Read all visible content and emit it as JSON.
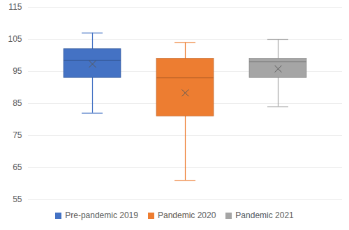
{
  "chart_data": {
    "type": "box",
    "series": [
      {
        "name": "Pre-pandemic 2019",
        "color": "#4472c4",
        "min": 82,
        "q1": 93,
        "median": 98.5,
        "q3": 102,
        "max": 107,
        "mean": 97.3
      },
      {
        "name": "Pandemic 2020",
        "color": "#ed7d31",
        "min": 61,
        "q1": 81,
        "median": 93,
        "q3": 99,
        "max": 104,
        "mean": 88.3
      },
      {
        "name": "Pandemic 2021",
        "color": "#a5a5a5",
        "min": 84,
        "q1": 93,
        "median": 98,
        "q3": 99,
        "max": 105,
        "mean": 95.8
      }
    ],
    "ylim": [
      55,
      115
    ],
    "yticks": [
      55,
      65,
      75,
      85,
      95,
      105,
      115
    ],
    "grid": true,
    "legend": "bottom",
    "marker": "x",
    "tick_labels": "y"
  }
}
